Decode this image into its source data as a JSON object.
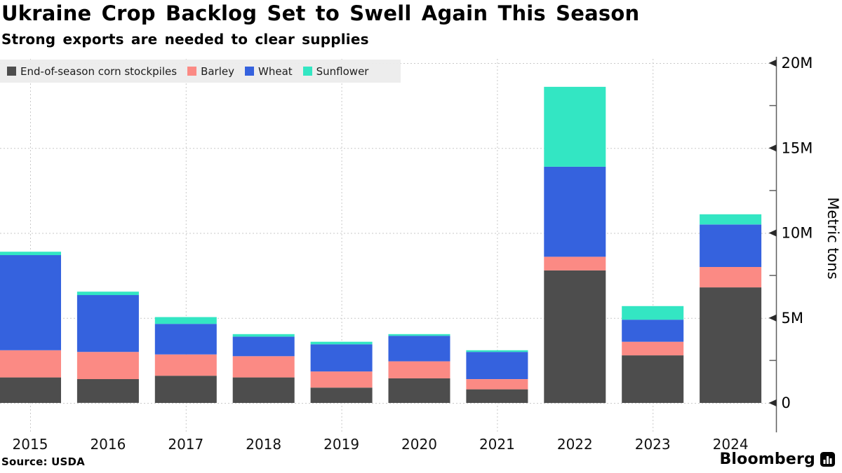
{
  "header": {
    "title": "Ukraine Crop Backlog Set to Swell Again This Season",
    "subtitle": "Strong exports are needed to clear supplies"
  },
  "legend": {
    "items": [
      {
        "label": "End-of-season corn stockpiles",
        "color": "#4d4d4d"
      },
      {
        "label": "Barley",
        "color": "#fb8a84"
      },
      {
        "label": "Wheat",
        "color": "#3562de"
      },
      {
        "label": "Sunflower",
        "color": "#33e6c3"
      }
    ]
  },
  "chart_data": {
    "type": "bar",
    "stacked": true,
    "title": "Ukraine Crop Backlog Set to Swell Again This Season",
    "subtitle": "Strong exports are needed to clear supplies",
    "unit": "million metric tons",
    "categories": [
      "2015",
      "2016",
      "2017",
      "2018",
      "2019",
      "2020",
      "2021",
      "2022",
      "2023",
      "2024"
    ],
    "series": [
      {
        "name": "End-of-season corn stockpiles",
        "color": "#4d4d4d",
        "values": [
          1.5,
          1.4,
          1.6,
          1.5,
          0.9,
          1.45,
          0.8,
          7.8,
          2.8,
          6.8
        ]
      },
      {
        "name": "Barley",
        "color": "#fb8a84",
        "values": [
          1.6,
          1.6,
          1.25,
          1.25,
          0.95,
          1.0,
          0.6,
          0.8,
          0.8,
          1.2
        ]
      },
      {
        "name": "Wheat",
        "color": "#3562de",
        "values": [
          5.6,
          3.35,
          1.8,
          1.15,
          1.6,
          1.5,
          1.6,
          5.3,
          1.3,
          2.5
        ]
      },
      {
        "name": "Sunflower",
        "color": "#33e6c3",
        "values": [
          0.2,
          0.2,
          0.4,
          0.15,
          0.15,
          0.1,
          0.1,
          4.7,
          0.8,
          0.6
        ]
      }
    ],
    "totals": [
      8.9,
      6.55,
      5.05,
      4.05,
      3.6,
      4.05,
      3.1,
      18.6,
      5.7,
      11.1
    ],
    "xlabel": "",
    "ylabel": "Metric tons",
    "ylim": [
      0,
      20
    ],
    "yticks": [
      {
        "value": 0,
        "label": "0"
      },
      {
        "value": 5,
        "label": "5M"
      },
      {
        "value": 10,
        "label": "10M"
      },
      {
        "value": 15,
        "label": "15M"
      },
      {
        "value": 20,
        "label": "20M"
      }
    ],
    "yticks_minor": [
      2.5,
      7.5,
      12.5,
      17.5
    ],
    "grid": {
      "horizontal_at": [
        0,
        5,
        10,
        15,
        20
      ],
      "vertical_at": [
        "2015",
        "2017",
        "2019",
        "2021",
        "2023"
      ]
    },
    "legend_position": "top-left",
    "axis_side": "right"
  },
  "footer": {
    "source": "Source: USDA",
    "brand": "Bloomberg"
  }
}
